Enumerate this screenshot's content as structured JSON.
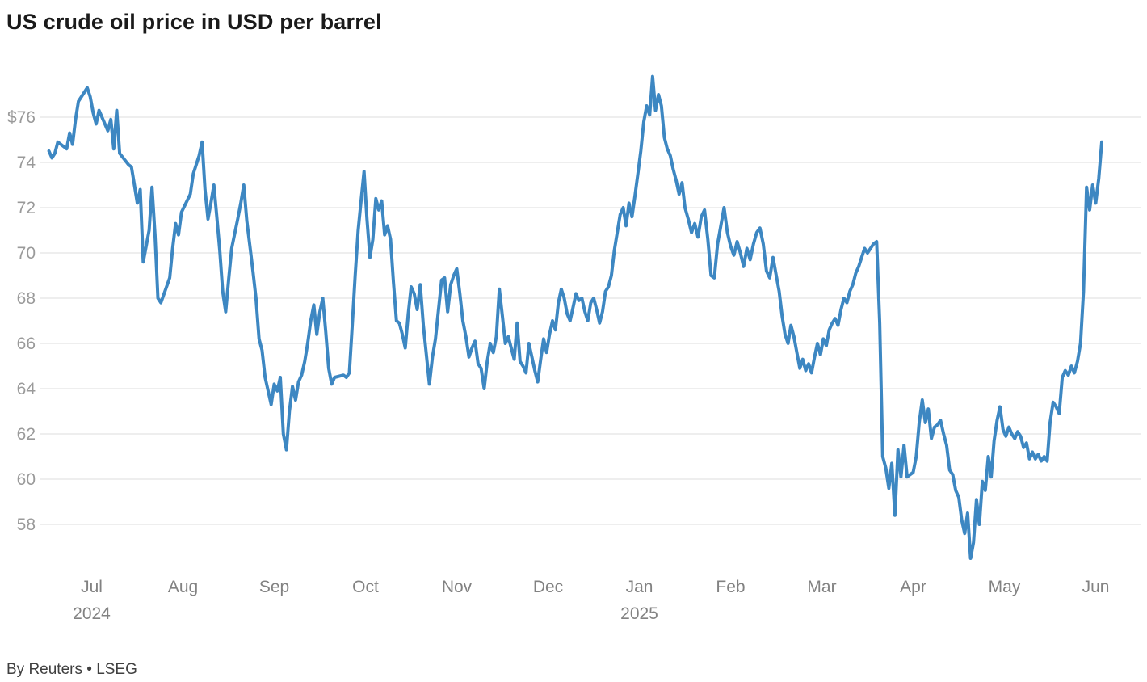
{
  "title": "US crude oil price in USD per barrel",
  "source": "By Reuters • LSEG",
  "chart_data": {
    "type": "line",
    "title": "US crude oil price in USD per barrel",
    "xlabel": "",
    "ylabel": "USD per barrel",
    "series_name": "US crude oil price",
    "line_color": "#3d87c2",
    "grid_color": "#dcdcdc",
    "axis_label_color": "#9a9a9a",
    "month_label_color": "#828282",
    "ylim": [
      56,
      78.5
    ],
    "grid": true,
    "legend_position": "none",
    "ylabel_ticks": [
      "$76",
      "74",
      "72",
      "70",
      "68",
      "66",
      "64",
      "62",
      "60",
      "58"
    ],
    "ytick_values": [
      76,
      74,
      72,
      70,
      68,
      66,
      64,
      62,
      60,
      58
    ],
    "x_months": [
      "Jul",
      "Aug",
      "Sep",
      "Oct",
      "Nov",
      "Dec",
      "Jan",
      "Feb",
      "Mar",
      "Apr",
      "May",
      "Jun"
    ],
    "x_years": [
      {
        "label": "2024",
        "under_month_index": 0
      },
      {
        "label": "2025",
        "under_month_index": 6
      }
    ],
    "points_format": "[days_since_2024-07-01, usd_per_barrel]",
    "points": [
      [
        1,
        74.5
      ],
      [
        2,
        74.2
      ],
      [
        3,
        74.4
      ],
      [
        4,
        74.9
      ],
      [
        7,
        74.6
      ],
      [
        8,
        75.3
      ],
      [
        9,
        74.8
      ],
      [
        10,
        75.9
      ],
      [
        11,
        76.7
      ],
      [
        14,
        77.3
      ],
      [
        15,
        76.9
      ],
      [
        16,
        76.2
      ],
      [
        17,
        75.7
      ],
      [
        18,
        76.3
      ],
      [
        21,
        75.4
      ],
      [
        22,
        75.9
      ],
      [
        23,
        74.6
      ],
      [
        24,
        76.3
      ],
      [
        25,
        74.4
      ],
      [
        28,
        73.9
      ],
      [
        29,
        73.8
      ],
      [
        30,
        73.0
      ],
      [
        31,
        72.2
      ],
      [
        32,
        72.8
      ],
      [
        33,
        69.6
      ],
      [
        35,
        71.0
      ],
      [
        36,
        72.9
      ],
      [
        37,
        70.8
      ],
      [
        38,
        68.0
      ],
      [
        39,
        67.8
      ],
      [
        42,
        68.9
      ],
      [
        43,
        70.2
      ],
      [
        44,
        71.3
      ],
      [
        45,
        70.8
      ],
      [
        46,
        71.8
      ],
      [
        49,
        72.6
      ],
      [
        50,
        73.5
      ],
      [
        52,
        74.3
      ],
      [
        53,
        74.9
      ],
      [
        54,
        72.8
      ],
      [
        55,
        71.5
      ],
      [
        56,
        72.2
      ],
      [
        57,
        73.0
      ],
      [
        58,
        71.6
      ],
      [
        59,
        70.1
      ],
      [
        60,
        68.3
      ],
      [
        61,
        67.4
      ],
      [
        62,
        68.8
      ],
      [
        63,
        70.2
      ],
      [
        65,
        71.5
      ],
      [
        66,
        72.2
      ],
      [
        67,
        73.0
      ],
      [
        68,
        71.4
      ],
      [
        69,
        70.3
      ],
      [
        70,
        69.2
      ],
      [
        71,
        68.0
      ],
      [
        72,
        66.2
      ],
      [
        73,
        65.7
      ],
      [
        74,
        64.5
      ],
      [
        76,
        63.3
      ],
      [
        77,
        64.2
      ],
      [
        78,
        63.9
      ],
      [
        79,
        64.5
      ],
      [
        80,
        62.0
      ],
      [
        81,
        61.3
      ],
      [
        82,
        63.0
      ],
      [
        83,
        64.1
      ],
      [
        84,
        63.5
      ],
      [
        85,
        64.3
      ],
      [
        86,
        64.6
      ],
      [
        87,
        65.2
      ],
      [
        88,
        66.0
      ],
      [
        89,
        67.0
      ],
      [
        90,
        67.7
      ],
      [
        91,
        66.4
      ],
      [
        92,
        67.4
      ],
      [
        93,
        68.0
      ],
      [
        94,
        66.5
      ],
      [
        95,
        64.9
      ],
      [
        96,
        64.2
      ],
      [
        97,
        64.5
      ],
      [
        100,
        64.6
      ],
      [
        101,
        64.5
      ],
      [
        102,
        64.7
      ],
      [
        103,
        66.8
      ],
      [
        104,
        69.0
      ],
      [
        105,
        71.0
      ],
      [
        106,
        72.3
      ],
      [
        107,
        73.6
      ],
      [
        108,
        71.5
      ],
      [
        109,
        69.8
      ],
      [
        110,
        70.6
      ],
      [
        111,
        72.4
      ],
      [
        112,
        71.9
      ],
      [
        113,
        72.3
      ],
      [
        114,
        70.8
      ],
      [
        115,
        71.2
      ],
      [
        116,
        70.6
      ],
      [
        117,
        68.7
      ],
      [
        118,
        67.0
      ],
      [
        119,
        66.9
      ],
      [
        120,
        66.4
      ],
      [
        121,
        65.8
      ],
      [
        122,
        67.3
      ],
      [
        123,
        68.5
      ],
      [
        124,
        68.2
      ],
      [
        125,
        67.5
      ],
      [
        126,
        68.6
      ],
      [
        127,
        66.8
      ],
      [
        129,
        64.2
      ],
      [
        130,
        65.4
      ],
      [
        131,
        66.2
      ],
      [
        132,
        67.5
      ],
      [
        133,
        68.8
      ],
      [
        134,
        68.9
      ],
      [
        135,
        67.4
      ],
      [
        136,
        68.6
      ],
      [
        137,
        69.0
      ],
      [
        138,
        69.3
      ],
      [
        139,
        68.2
      ],
      [
        140,
        67.0
      ],
      [
        141,
        66.3
      ],
      [
        142,
        65.4
      ],
      [
        143,
        65.8
      ],
      [
        144,
        66.1
      ],
      [
        145,
        65.1
      ],
      [
        146,
        64.9
      ],
      [
        147,
        64.0
      ],
      [
        148,
        65.2
      ],
      [
        149,
        66.0
      ],
      [
        150,
        65.6
      ],
      [
        151,
        66.3
      ],
      [
        152,
        68.4
      ],
      [
        153,
        67.2
      ],
      [
        154,
        66.0
      ],
      [
        155,
        66.3
      ],
      [
        156,
        65.8
      ],
      [
        157,
        65.3
      ],
      [
        158,
        66.9
      ],
      [
        159,
        65.2
      ],
      [
        160,
        65.0
      ],
      [
        161,
        64.7
      ],
      [
        162,
        66.0
      ],
      [
        163,
        65.4
      ],
      [
        164,
        64.8
      ],
      [
        165,
        64.3
      ],
      [
        166,
        65.3
      ],
      [
        167,
        66.2
      ],
      [
        168,
        65.6
      ],
      [
        169,
        66.4
      ],
      [
        170,
        67.0
      ],
      [
        171,
        66.6
      ],
      [
        172,
        67.8
      ],
      [
        173,
        68.4
      ],
      [
        174,
        68.0
      ],
      [
        175,
        67.3
      ],
      [
        176,
        67.0
      ],
      [
        177,
        67.6
      ],
      [
        178,
        68.2
      ],
      [
        179,
        67.9
      ],
      [
        180,
        68.0
      ],
      [
        181,
        67.4
      ],
      [
        182,
        67.0
      ],
      [
        183,
        67.8
      ],
      [
        184,
        68.0
      ],
      [
        185,
        67.5
      ],
      [
        186,
        66.9
      ],
      [
        187,
        67.4
      ],
      [
        188,
        68.3
      ],
      [
        189,
        68.5
      ],
      [
        190,
        69.0
      ],
      [
        191,
        70.1
      ],
      [
        193,
        71.7
      ],
      [
        194,
        72.0
      ],
      [
        195,
        71.2
      ],
      [
        196,
        72.2
      ],
      [
        197,
        71.6
      ],
      [
        198,
        72.5
      ],
      [
        199,
        73.5
      ],
      [
        200,
        74.5
      ],
      [
        201,
        75.8
      ],
      [
        202,
        76.5
      ],
      [
        203,
        76.1
      ],
      [
        204,
        77.8
      ],
      [
        205,
        76.3
      ],
      [
        206,
        77.0
      ],
      [
        207,
        76.5
      ],
      [
        208,
        75.1
      ],
      [
        209,
        74.6
      ],
      [
        210,
        74.3
      ],
      [
        211,
        73.7
      ],
      [
        212,
        73.2
      ],
      [
        213,
        72.6
      ],
      [
        214,
        73.1
      ],
      [
        215,
        72.0
      ],
      [
        216,
        71.5
      ],
      [
        217,
        70.9
      ],
      [
        218,
        71.3
      ],
      [
        219,
        70.7
      ],
      [
        220,
        71.6
      ],
      [
        221,
        71.9
      ],
      [
        222,
        70.6
      ],
      [
        223,
        69.0
      ],
      [
        224,
        68.9
      ],
      [
        225,
        70.4
      ],
      [
        226,
        71.2
      ],
      [
        227,
        72.0
      ],
      [
        228,
        70.9
      ],
      [
        229,
        70.3
      ],
      [
        230,
        69.9
      ],
      [
        231,
        70.5
      ],
      [
        232,
        70.0
      ],
      [
        233,
        69.4
      ],
      [
        234,
        70.2
      ],
      [
        235,
        69.7
      ],
      [
        236,
        70.4
      ],
      [
        237,
        70.9
      ],
      [
        238,
        71.1
      ],
      [
        239,
        70.4
      ],
      [
        240,
        69.2
      ],
      [
        241,
        68.9
      ],
      [
        242,
        69.8
      ],
      [
        243,
        69.0
      ],
      [
        244,
        68.3
      ],
      [
        245,
        67.2
      ],
      [
        246,
        66.4
      ],
      [
        247,
        66.0
      ],
      [
        248,
        66.8
      ],
      [
        249,
        66.3
      ],
      [
        250,
        65.6
      ],
      [
        251,
        64.9
      ],
      [
        252,
        65.3
      ],
      [
        253,
        64.8
      ],
      [
        254,
        65.1
      ],
      [
        255,
        64.7
      ],
      [
        256,
        65.4
      ],
      [
        257,
        66.0
      ],
      [
        258,
        65.5
      ],
      [
        259,
        66.2
      ],
      [
        260,
        65.9
      ],
      [
        261,
        66.6
      ],
      [
        262,
        66.9
      ],
      [
        263,
        67.1
      ],
      [
        264,
        66.8
      ],
      [
        265,
        67.5
      ],
      [
        266,
        68.0
      ],
      [
        267,
        67.8
      ],
      [
        268,
        68.3
      ],
      [
        269,
        68.6
      ],
      [
        270,
        69.1
      ],
      [
        271,
        69.4
      ],
      [
        272,
        69.8
      ],
      [
        273,
        70.2
      ],
      [
        274,
        70.0
      ],
      [
        276,
        70.4
      ],
      [
        277,
        70.5
      ],
      [
        278,
        66.9
      ],
      [
        279,
        61.0
      ],
      [
        280,
        60.5
      ],
      [
        281,
        59.6
      ],
      [
        282,
        60.7
      ],
      [
        283,
        58.4
      ],
      [
        284,
        61.3
      ],
      [
        285,
        60.1
      ],
      [
        286,
        61.5
      ],
      [
        287,
        60.1
      ],
      [
        288,
        60.2
      ],
      [
        289,
        60.3
      ],
      [
        290,
        61.0
      ],
      [
        291,
        62.5
      ],
      [
        292,
        63.5
      ],
      [
        293,
        62.5
      ],
      [
        294,
        63.1
      ],
      [
        295,
        61.8
      ],
      [
        296,
        62.3
      ],
      [
        297,
        62.4
      ],
      [
        298,
        62.6
      ],
      [
        299,
        62.0
      ],
      [
        300,
        61.5
      ],
      [
        301,
        60.4
      ],
      [
        302,
        60.2
      ],
      [
        303,
        59.5
      ],
      [
        304,
        59.2
      ],
      [
        305,
        58.2
      ],
      [
        306,
        57.6
      ],
      [
        307,
        58.5
      ],
      [
        308,
        56.5
      ],
      [
        309,
        57.2
      ],
      [
        310,
        59.1
      ],
      [
        311,
        58.0
      ],
      [
        312,
        59.9
      ],
      [
        313,
        59.5
      ],
      [
        314,
        61.0
      ],
      [
        315,
        60.1
      ],
      [
        316,
        61.7
      ],
      [
        317,
        62.6
      ],
      [
        318,
        63.2
      ],
      [
        319,
        62.2
      ],
      [
        320,
        61.9
      ],
      [
        321,
        62.3
      ],
      [
        322,
        62.0
      ],
      [
        323,
        61.8
      ],
      [
        324,
        62.1
      ],
      [
        325,
        61.9
      ],
      [
        326,
        61.4
      ],
      [
        327,
        61.6
      ],
      [
        328,
        60.9
      ],
      [
        329,
        61.2
      ],
      [
        330,
        60.9
      ],
      [
        331,
        61.1
      ],
      [
        332,
        60.8
      ],
      [
        333,
        61.0
      ],
      [
        334,
        60.8
      ],
      [
        335,
        62.5
      ],
      [
        336,
        63.4
      ],
      [
        337,
        63.2
      ],
      [
        338,
        62.9
      ],
      [
        339,
        64.5
      ],
      [
        340,
        64.8
      ],
      [
        341,
        64.6
      ],
      [
        342,
        65.0
      ],
      [
        343,
        64.7
      ],
      [
        344,
        65.2
      ],
      [
        345,
        66.0
      ],
      [
        346,
        68.3
      ],
      [
        347,
        72.9
      ],
      [
        348,
        71.9
      ],
      [
        349,
        73.0
      ],
      [
        350,
        72.2
      ],
      [
        351,
        73.3
      ],
      [
        352,
        74.9
      ]
    ]
  }
}
